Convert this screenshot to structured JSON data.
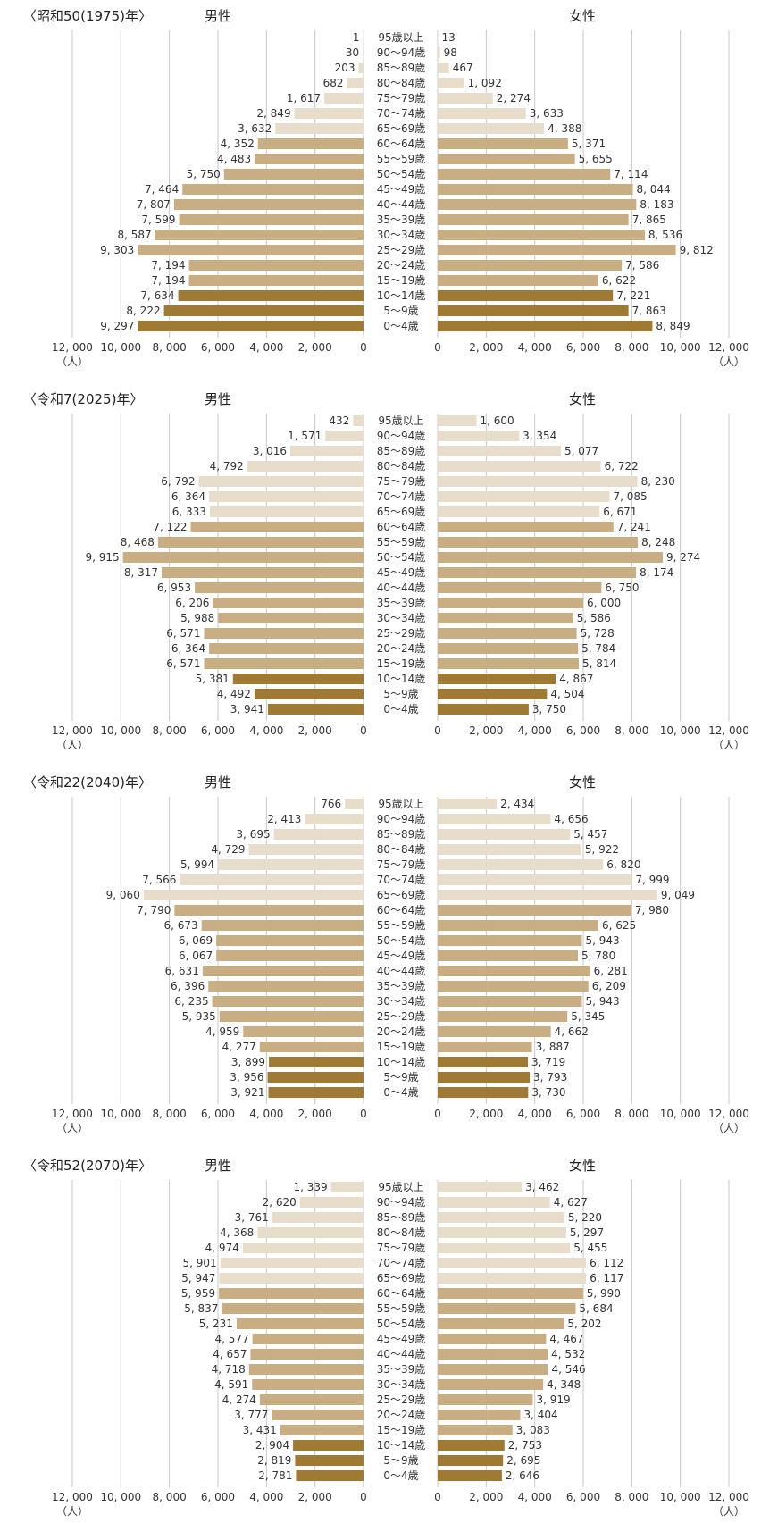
{
  "age_groups": [
    "95歳以上",
    "90～94歳",
    "85～89歳",
    "80～84歳",
    "75～79歳",
    "70～74歳",
    "65～69歳",
    "60～64歳",
    "55～59歳",
    "50～54歳",
    "45～49歳",
    "40～44歳",
    "35～39歳",
    "30～34歳",
    "25～29歳",
    "20～24歳",
    "15～19歳",
    "10～14歳",
    "5～9歳",
    "0～4歳"
  ],
  "labels": {
    "male": "男性",
    "female": "女性",
    "unit": "（人）"
  },
  "x_ticks": [
    "12,000",
    "10,000",
    "8,000",
    "6,000",
    "4,000",
    "2,000",
    "0"
  ],
  "x_ticks_female": [
    "0",
    "2,000",
    "4,000",
    "6,000",
    "8,000",
    "10,000",
    "12,000"
  ],
  "colors": {
    "elderly": "#e8dccb",
    "working": "#c9ae84",
    "young": "#9e7a34",
    "grid": "#c8c8c8"
  },
  "chart_data": [
    {
      "type": "bar",
      "title": "〈昭和50(1975)年〉",
      "xlim": [
        0,
        12000
      ],
      "male": [
        1,
        30,
        203,
        682,
        1617,
        2849,
        3632,
        4352,
        4483,
        5750,
        7464,
        7807,
        7599,
        8587,
        9303,
        7194,
        7194,
        7634,
        8222,
        9297
      ],
      "female": [
        13,
        98,
        467,
        1092,
        2274,
        3633,
        4388,
        5371,
        5655,
        7114,
        8044,
        8183,
        7865,
        8536,
        9812,
        7586,
        6622,
        7221,
        7863,
        8849
      ]
    },
    {
      "type": "bar",
      "title": "〈令和7(2025)年〉",
      "xlim": [
        0,
        12000
      ],
      "male": [
        432,
        1571,
        3016,
        4792,
        6792,
        6364,
        6333,
        7122,
        8468,
        9915,
        8317,
        6953,
        6206,
        5988,
        6571,
        6364,
        6571,
        5381,
        4492,
        3941
      ],
      "female": [
        1600,
        3354,
        5077,
        6722,
        8230,
        7085,
        6671,
        7241,
        8248,
        9274,
        8174,
        6750,
        6000,
        5586,
        5728,
        5784,
        5814,
        4867,
        4504,
        3750
      ]
    },
    {
      "type": "bar",
      "title": "〈令和22(2040)年〉",
      "xlim": [
        0,
        12000
      ],
      "male": [
        766,
        2413,
        3695,
        4729,
        5994,
        7566,
        9060,
        7790,
        6673,
        6069,
        6067,
        6631,
        6396,
        6235,
        5935,
        4959,
        4277,
        3899,
        3956,
        3921
      ],
      "female": [
        2434,
        4656,
        5457,
        5922,
        6820,
        7999,
        9049,
        7980,
        6625,
        5943,
        5780,
        6281,
        6209,
        5943,
        5345,
        4662,
        3887,
        3719,
        3793,
        3730
      ]
    },
    {
      "type": "bar",
      "title": "〈令和52(2070)年〉",
      "xlim": [
        0,
        12000
      ],
      "male": [
        1339,
        2620,
        3761,
        4368,
        4974,
        5901,
        5947,
        5959,
        5837,
        5231,
        4577,
        4657,
        4718,
        4591,
        4274,
        3777,
        3431,
        2904,
        2819,
        2781
      ],
      "female": [
        3462,
        4627,
        5220,
        5297,
        5455,
        6112,
        6117,
        5990,
        5684,
        5202,
        4467,
        4532,
        4546,
        4348,
        3919,
        3404,
        3083,
        2753,
        2695,
        2646
      ]
    }
  ]
}
